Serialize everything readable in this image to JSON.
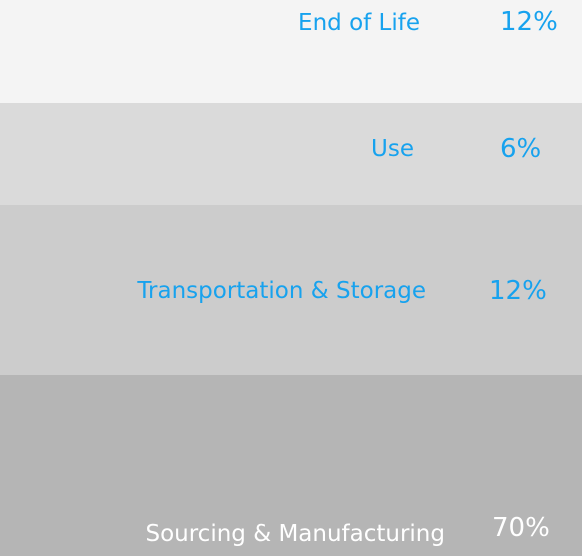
{
  "rows": [
    {
      "label": "End of Life",
      "value": "12%"
    },
    {
      "label": "Use",
      "value": "6%"
    },
    {
      "label": "Transportation & Storage",
      "value": "12%"
    },
    {
      "label": "Sourcing & Manufacturing",
      "value": "70%"
    }
  ]
}
